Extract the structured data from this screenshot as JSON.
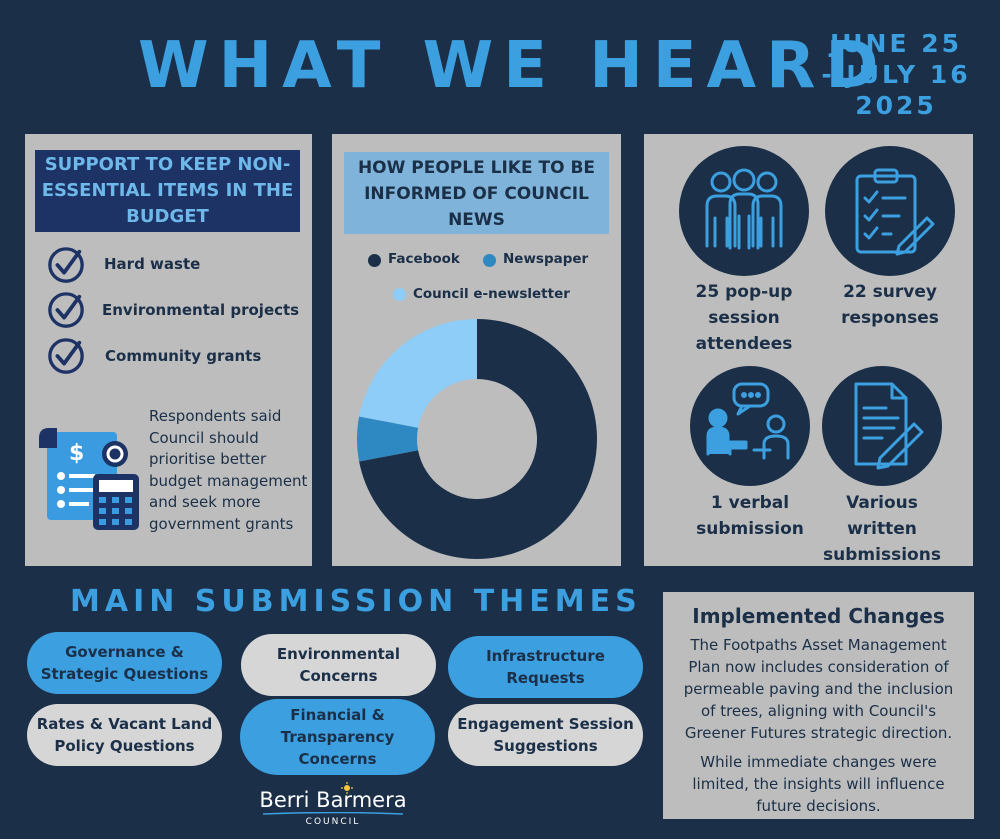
{
  "header": {
    "title": "WHAT WE HEARD",
    "date": "JUNE 25\n- JULY 16\n2025"
  },
  "support": {
    "heading": "SUPPORT TO KEEP NON-ESSENTIAL ITEMS IN THE BUDGET",
    "items": [
      "Hard waste",
      "Environmental projects",
      "Community grants"
    ],
    "respondents_text": "Respondents said Council should prioritise better budget management and seek more government grants"
  },
  "informed": {
    "heading": "HOW PEOPLE LIKE TO BE INFORMED OF COUNCIL NEWS",
    "legend": [
      {
        "label": "Facebook",
        "color": "#1b3048"
      },
      {
        "label": "Newspaper",
        "color": "#2e88c1"
      },
      {
        "label": "Council e-newsletter",
        "color": "#8ecdf7"
      }
    ],
    "donut_shares": [
      0.72,
      0.06,
      0.22
    ]
  },
  "stats": [
    {
      "text": "25 pop-up\nsession\nattendees",
      "icon": "people-icon"
    },
    {
      "text": "22 survey\nresponses",
      "icon": "clipboard-icon"
    },
    {
      "text": "1 verbal\nsubmission",
      "icon": "conversation-icon"
    },
    {
      "text": "Various\nwritten\nsubmissions",
      "icon": "document-pen-icon"
    }
  ],
  "themes": {
    "heading": "MAIN SUBMISSION THEMES",
    "items": [
      "Governance &\nStrategic Questions",
      "Environmental\nConcerns",
      "Infrastructure\nRequests",
      "Rates & Vacant Land\nPolicy Questions",
      "Financial &\nTransparency\nConcerns",
      "Engagement Session\nSuggestions"
    ]
  },
  "implemented": {
    "title": "Implemented Changes",
    "para1": "The Footpaths Asset Management Plan now includes consideration of permeable paving and the inclusion of trees, aligning with Council's Greener Futures strategic direction.",
    "para2": "While immediate changes were limited, the insights will influence future decisions."
  },
  "logo": {
    "name": "Berri Barmera",
    "sub": "COUNCIL"
  },
  "colors": {
    "accent": "#3b9fe0",
    "navy": "#1b3048",
    "panel": "#bdbdbd"
  }
}
